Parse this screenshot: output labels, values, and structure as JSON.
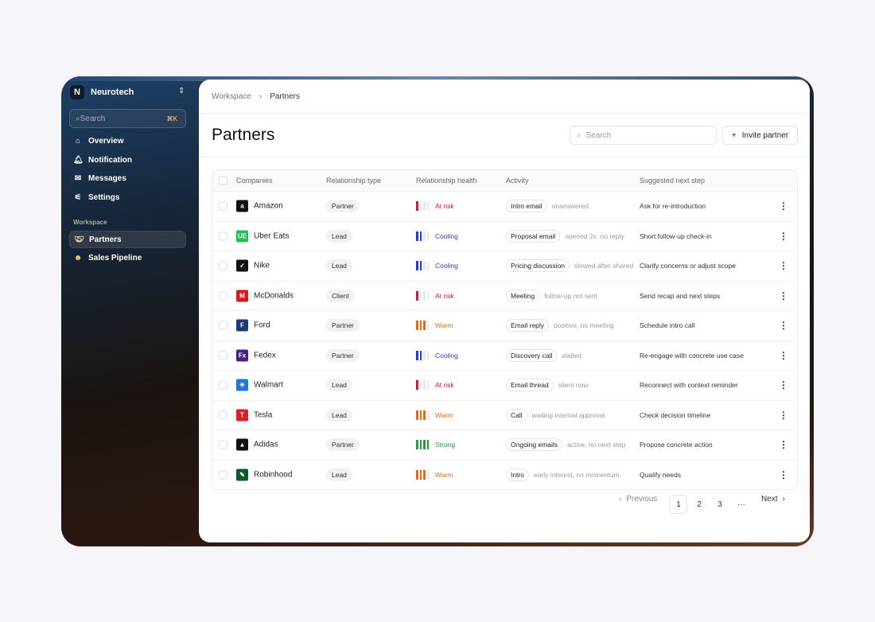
{
  "sidebar": {
    "org": "Neurotech",
    "org_initial": "N",
    "search_placeholder": "Search",
    "search_shortcut": "⌘K",
    "nav": [
      {
        "label": "Overview",
        "icon": "home-icon"
      },
      {
        "label": "Notification",
        "icon": "bell-icon"
      },
      {
        "label": "Messages",
        "icon": "mail-icon"
      },
      {
        "label": "Settings",
        "icon": "sliders-icon"
      }
    ],
    "section": "Workspace",
    "workspace": [
      {
        "label": "Partners",
        "icon": "handshake-icon",
        "active": true
      },
      {
        "label": "Sales Pipeline",
        "icon": "money-face-icon"
      }
    ]
  },
  "breadcrumb": [
    "Workspace",
    "Partners"
  ],
  "page": {
    "title": "Partners",
    "search_placeholder": "Search",
    "invite_label": "Invite partner"
  },
  "colors": {
    "at_risk": "#d0182a",
    "cooling": "#1d3fd6",
    "warm": "#e56a12",
    "strong": "#1fa33a"
  },
  "table": {
    "headers": [
      "Companies",
      "Relationship type",
      "Relationship health",
      "Activity",
      "Suggested next step"
    ],
    "rows": [
      {
        "company": "Amazon",
        "logo": "a",
        "logo_bg": "#111",
        "type": "Partner",
        "health": "At risk",
        "level": 1,
        "activity": "Intro email",
        "note": "unanswered",
        "next": "Ask for re-introduction"
      },
      {
        "company": "Uber Eats",
        "logo": "UE",
        "logo_bg": "#1fc05a",
        "type": "Lead",
        "health": "Cooling",
        "level": 2,
        "activity": "Proposal email",
        "note": "opened 2x, no reply",
        "next": "Short follow-up check-in"
      },
      {
        "company": "Nike",
        "logo": "✓",
        "logo_bg": "#111",
        "type": "Lead",
        "health": "Cooling",
        "level": 2,
        "activity": "Pricing discussion",
        "note": "slowed after shared",
        "next": "Clarify concerns or adjust scope"
      },
      {
        "company": "McDonalds",
        "logo": "M",
        "logo_bg": "#d81a1a",
        "type": "Client",
        "health": "At risk",
        "level": 1,
        "activity": "Meeting",
        "note": "follow-up not sent",
        "next": "Send recap and next steps"
      },
      {
        "company": "Ford",
        "logo": "F",
        "logo_bg": "#1c3a7a",
        "type": "Partner",
        "health": "Warm",
        "level": 3,
        "activity": "Email reply",
        "note": "positive, no meeting",
        "next": "Schedule intro call"
      },
      {
        "company": "Fedex",
        "logo": "Fx",
        "logo_bg": "#4b1f8a",
        "type": "Partner",
        "health": "Cooling",
        "level": 2,
        "activity": "Discovery call",
        "note": "stalled",
        "next": "Re-engage with concrete use case"
      },
      {
        "company": "Walmart",
        "logo": "✳",
        "logo_bg": "#1e78d6",
        "type": "Lead",
        "health": "At risk",
        "level": 1,
        "activity": "Email thread",
        "note": "silent now",
        "next": "Reconnect with context reminder"
      },
      {
        "company": "Tesla",
        "logo": "T",
        "logo_bg": "#d8202a",
        "type": "Lead",
        "health": "Warm",
        "level": 3,
        "activity": "Call",
        "note": "waiting internal approval",
        "next": "Check decision timeline"
      },
      {
        "company": "Adidas",
        "logo": "▲",
        "logo_bg": "#111",
        "type": "Partner",
        "health": "Strong",
        "level": 4,
        "activity": "Ongoing emails",
        "note": "active, no next step",
        "next": "Propose concrete action"
      },
      {
        "company": "Robinhood",
        "logo": "✎",
        "logo_bg": "#0f5a2a",
        "type": "Lead",
        "health": "Warm",
        "level": 3,
        "activity": "Intro",
        "note": "early interest, no momentum",
        "next": "Qualify needs"
      }
    ]
  },
  "pagination": {
    "previous": "Previous",
    "pages": [
      "1",
      "2",
      "3"
    ],
    "ellipsis": "···",
    "next": "Next",
    "current": "1"
  }
}
